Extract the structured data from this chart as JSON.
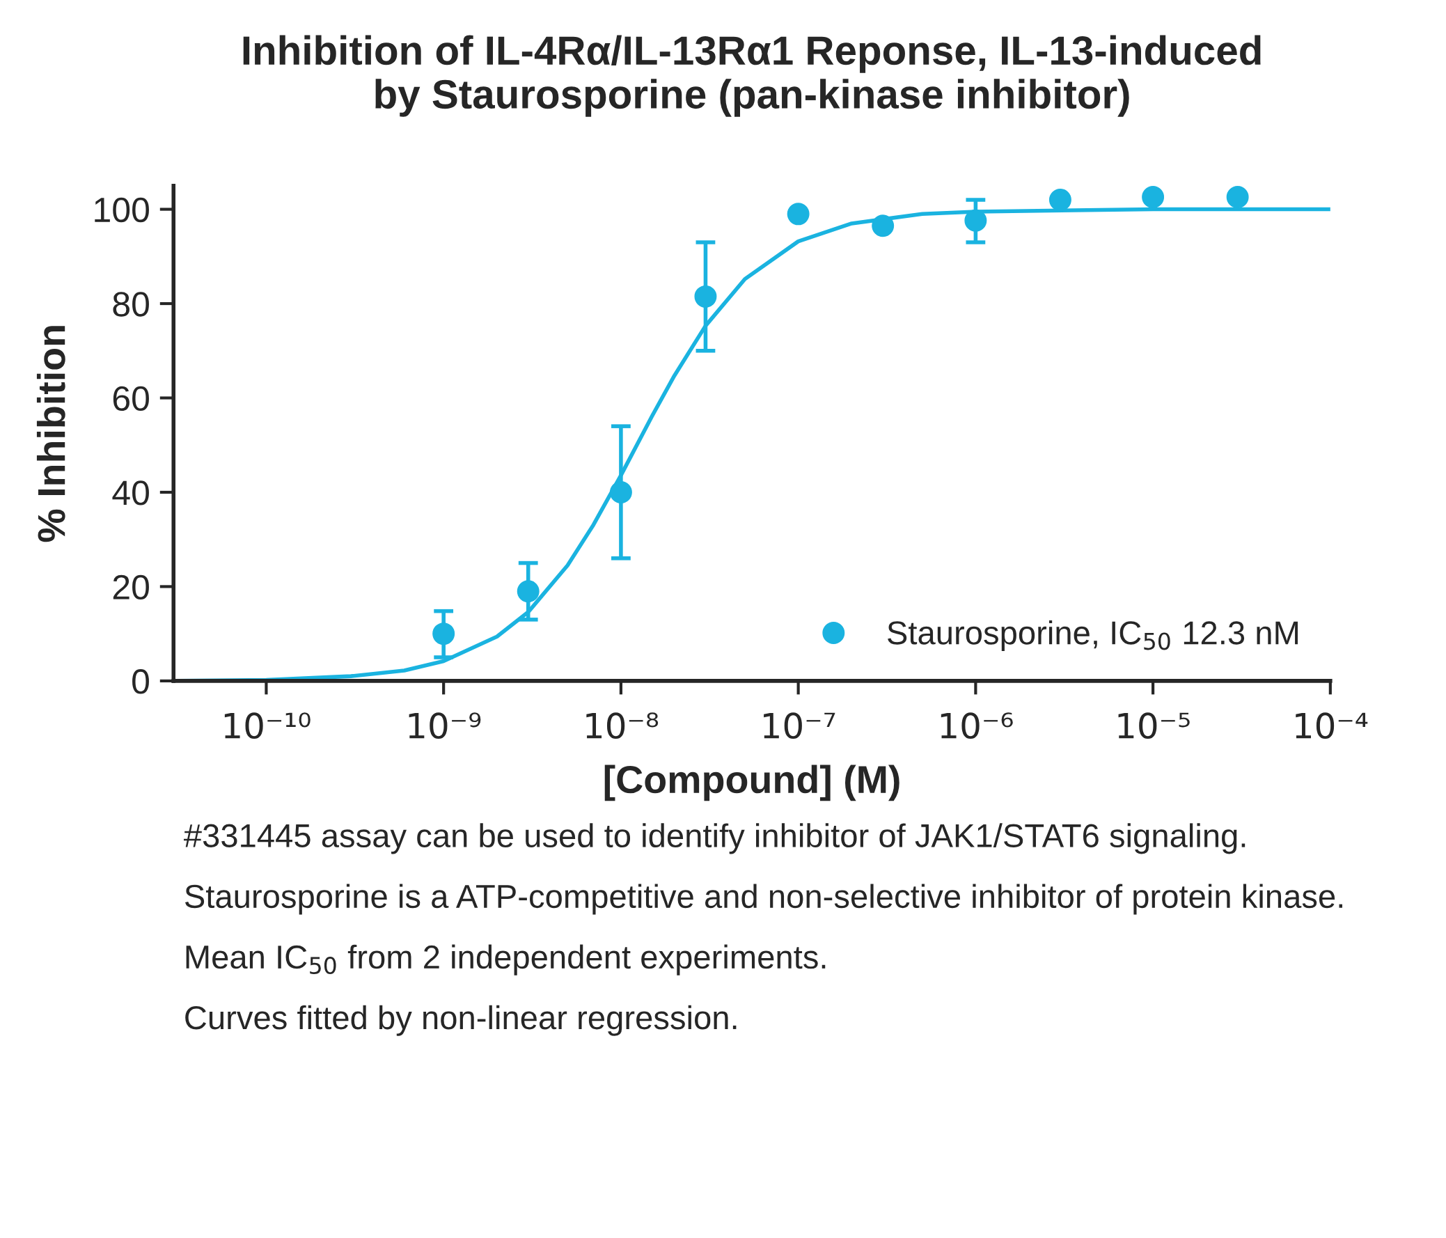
{
  "chart_data": {
    "type": "scatter",
    "title": "Inhibition of IL-4Rα/IL-13Rα1 Reponse, IL-13-induced\nby Staurosporine (pan-kinase inhibitor)",
    "xlabel": "[Compound] (M)",
    "ylabel": "% Inhibition",
    "series": [
      {
        "name": "Staurosporine, IC$_{50}$ 12.3 nM",
        "color": "#1ab3e0",
        "x": [
          1e-09,
          3e-09,
          1e-08,
          3e-08,
          1e-07,
          3e-07,
          1e-06,
          3e-06,
          1e-05,
          3e-05
        ],
        "values": [
          10,
          19,
          40,
          81.5,
          99,
          96.5,
          97.6,
          102,
          102.6,
          102.6
        ],
        "errors": [
          [
            5,
            14.8
          ],
          [
            13,
            25
          ],
          [
            26,
            54
          ],
          [
            70,
            93
          ],
          null,
          null,
          [
            93,
            102
          ],
          null,
          null,
          null
        ]
      },
      {
        "type": "line",
        "marker": "none",
        "color": "#1ab3e0",
        "x": [
          3e-11,
          1e-10,
          3e-10,
          6e-10,
          1e-09,
          2e-09,
          3e-09,
          5e-09,
          7e-09,
          1e-08,
          1.5e-08,
          2e-08,
          3e-08,
          5e-08,
          1e-07,
          2e-07,
          5e-07,
          1e-06,
          1e-05,
          0.0001
        ],
        "values": [
          0,
          0.2,
          1,
          2.2,
          4.2,
          9.4,
          14.6,
          24.5,
          33.1,
          43.6,
          56.2,
          64.7,
          75.3,
          85.2,
          93.2,
          97.0,
          99.0,
          99.5,
          100,
          100
        ]
      }
    ],
    "log": "x",
    "xlim": [
      3e-11,
      0.0001
    ],
    "xticks": [
      {
        "value": 1e-10,
        "label": "10⁻¹⁰"
      },
      {
        "value": 1e-09,
        "label": "10⁻⁹"
      },
      {
        "value": 1e-08,
        "label": "10⁻⁸"
      },
      {
        "value": 1e-07,
        "label": "10⁻⁷"
      },
      {
        "value": 1e-06,
        "label": "10⁻⁶"
      },
      {
        "value": 1e-05,
        "label": "10⁻⁵"
      },
      {
        "value": 0.0001,
        "label": "10⁻⁴"
      }
    ],
    "ylim": [
      0,
      105
    ],
    "yticks": [
      0,
      20,
      40,
      60,
      80,
      100
    ],
    "grid": false,
    "legend": "bottom right",
    "marker": "circle",
    "annotations": [
      "#331445 assay can be used to identify inhibitor of JAK1/STAT6 signaling.",
      "Staurosporine is a ATP-competitive and non-selective inhibitor of protein kinase.",
      "Mean IC$_{50}$ from 2 independent experiments.",
      "Curves fitted by non-linear regression."
    ]
  }
}
